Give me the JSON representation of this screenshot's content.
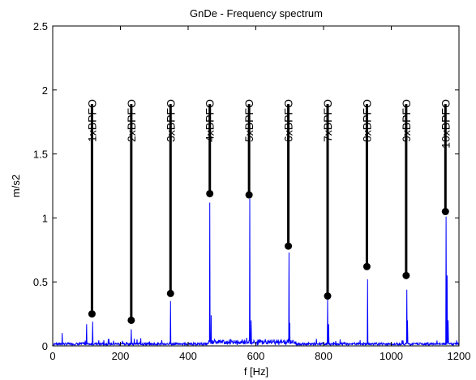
{
  "chart_data": {
    "type": "line",
    "title": "GnDe - Frequency spectrum",
    "xlabel": "f [Hz]",
    "ylabel": "m/s2",
    "xlim": [
      0,
      1200
    ],
    "ylim": [
      0,
      2.5
    ],
    "x_ticks": [
      0,
      200,
      400,
      600,
      800,
      1000,
      1200
    ],
    "y_ticks": [
      0,
      0.5,
      1,
      1.5,
      2,
      2.5
    ],
    "grid": false,
    "series_color": "#0000ff",
    "marker_color": "#000000",
    "peaks": [
      {
        "x": 28,
        "y": 0.1
      },
      {
        "x": 100,
        "y": 0.17
      },
      {
        "x": 118,
        "y": 0.19
      },
      {
        "x": 180,
        "y": 0.04
      },
      {
        "x": 232,
        "y": 0.13
      },
      {
        "x": 260,
        "y": 0.06
      },
      {
        "x": 348,
        "y": 0.35
      },
      {
        "x": 464,
        "y": 1.12
      },
      {
        "x": 468,
        "y": 0.24
      },
      {
        "x": 582,
        "y": 1.15
      },
      {
        "x": 586,
        "y": 0.2
      },
      {
        "x": 698,
        "y": 0.73
      },
      {
        "x": 700,
        "y": 0.18
      },
      {
        "x": 812,
        "y": 0.37
      },
      {
        "x": 815,
        "y": 0.17
      },
      {
        "x": 930,
        "y": 0.52
      },
      {
        "x": 1046,
        "y": 0.44
      },
      {
        "x": 1048,
        "y": 0.2
      },
      {
        "x": 1162,
        "y": 1.01
      },
      {
        "x": 1165,
        "y": 0.55
      },
      {
        "x": 1168,
        "y": 0.2
      }
    ],
    "markers": [
      {
        "label": "1xBPFO",
        "x": 116,
        "y": 0.25
      },
      {
        "label": "2xBPFO",
        "x": 232,
        "y": 0.2
      },
      {
        "label": "3xBPFO",
        "x": 348,
        "y": 0.41
      },
      {
        "label": "4xBPFO",
        "x": 464,
        "y": 1.19
      },
      {
        "label": "5xBPFO",
        "x": 580,
        "y": 1.18
      },
      {
        "label": "6xBPFO",
        "x": 696,
        "y": 0.78
      },
      {
        "label": "7xBPFO",
        "x": 812,
        "y": 0.39
      },
      {
        "label": "8xBPFO",
        "x": 928,
        "y": 0.62
      },
      {
        "label": "9xBPFO",
        "x": 1044,
        "y": 0.55
      },
      {
        "label": "10xBPFO",
        "x": 1160,
        "y": 1.05
      }
    ],
    "marker_top": 1.89
  }
}
